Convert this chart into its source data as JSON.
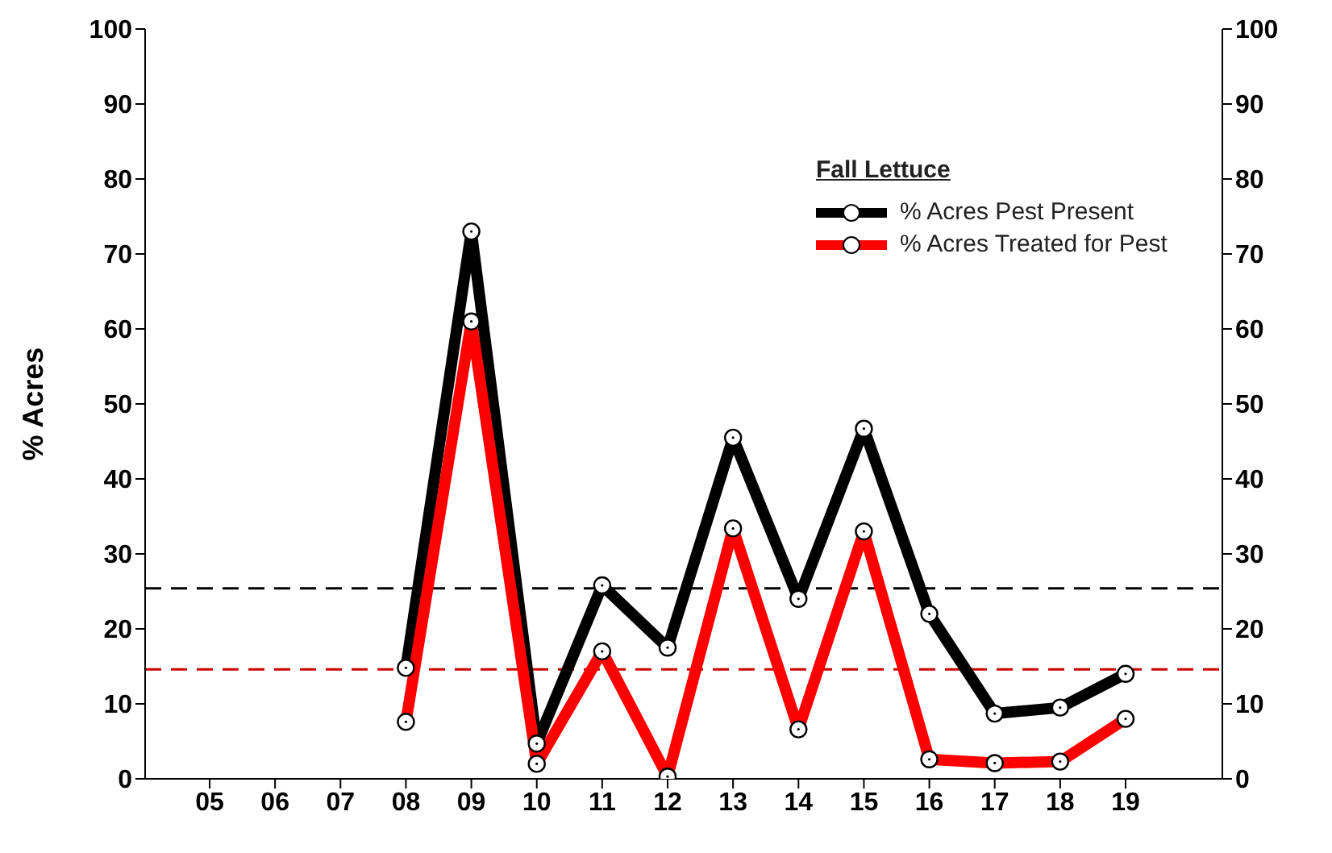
{
  "chart_data": {
    "type": "line",
    "ylabel": "% Acres",
    "legend_title": "Fall Lettuce",
    "categories": [
      "05",
      "06",
      "07",
      "08",
      "09",
      "10",
      "11",
      "12",
      "13",
      "14",
      "15",
      "16",
      "17",
      "18",
      "19"
    ],
    "series": [
      {
        "name": "% Acres Pest Present",
        "color": "#000000",
        "values": [
          null,
          null,
          null,
          14.8,
          73,
          4.7,
          25.8,
          17.5,
          45.5,
          24,
          46.7,
          22,
          8.7,
          9.5,
          14
        ]
      },
      {
        "name": "% Acres Treated for Pest",
        "color": "#ff0000",
        "values": [
          null,
          null,
          null,
          7.6,
          61,
          2,
          17,
          0.3,
          33.4,
          6.6,
          33,
          2.6,
          2.1,
          2.3,
          8
        ]
      }
    ],
    "ylim": [
      0,
      100
    ],
    "yticks": [
      0,
      10,
      20,
      30,
      40,
      50,
      60,
      70,
      80,
      90,
      100
    ],
    "y2lim": [
      0,
      100
    ],
    "y2ticks": [
      0,
      10,
      20,
      30,
      40,
      50,
      60,
      70,
      80,
      90,
      100
    ],
    "ref_lines": [
      {
        "axis": "y",
        "value": 25.4,
        "color": "#000000",
        "line_style": "dashed"
      },
      {
        "axis": "y",
        "value": 14.6,
        "color": "#cc0000",
        "line_style": "dashed"
      }
    ],
    "marker": "circle",
    "line_style": "solid",
    "grid": false,
    "legend": "top right"
  }
}
